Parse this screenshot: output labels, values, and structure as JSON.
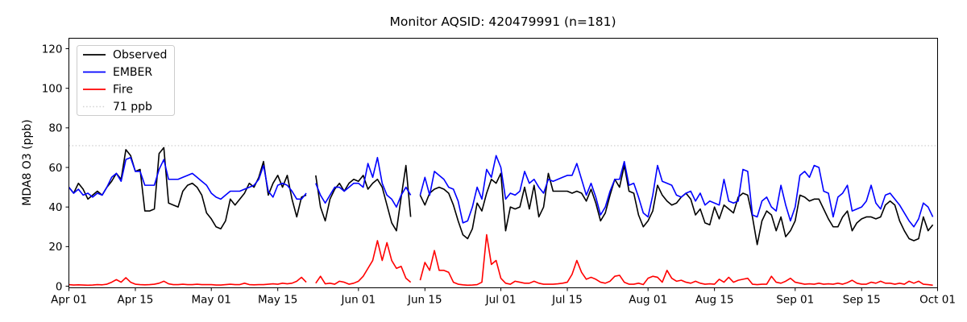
{
  "title": "Monitor AQSID: 420479991 (n=181)",
  "colors": {
    "observed": "#000000",
    "ember": "#0000ff",
    "fire": "#ff0000",
    "threshold": "#d3d3d3",
    "spine": "#000000",
    "legend_border": "#cccccc",
    "background": "#ffffff"
  },
  "chart_data": {
    "type": "line",
    "title": "Monitor AQSID: 420479991 (n=181)",
    "xlabel": "",
    "ylabel": "MDA8 O3 (ppb)",
    "ylim": [
      0,
      125
    ],
    "yticks": [
      0,
      20,
      40,
      60,
      80,
      100,
      120
    ],
    "x_range_days": 183,
    "xticks": [
      {
        "label": "Apr 01",
        "day": 0
      },
      {
        "label": "Apr 15",
        "day": 14
      },
      {
        "label": "May 01",
        "day": 30
      },
      {
        "label": "May 15",
        "day": 44
      },
      {
        "label": "Jun 01",
        "day": 61
      },
      {
        "label": "Jun 15",
        "day": 75
      },
      {
        "label": "Jul 01",
        "day": 91
      },
      {
        "label": "Jul 15",
        "day": 105
      },
      {
        "label": "Aug 01",
        "day": 122
      },
      {
        "label": "Aug 15",
        "day": 136
      },
      {
        "label": "Sep 01",
        "day": 153
      },
      {
        "label": "Sep 15",
        "day": 167
      },
      {
        "label": "Oct 01",
        "day": 183
      }
    ],
    "threshold": {
      "value": 71,
      "label": "71 ppb",
      "style": "dotted"
    },
    "legend": {
      "position": "upper-left",
      "entries": [
        "Observed",
        "EMBER",
        "Fire",
        "71 ppb"
      ]
    },
    "grid": false,
    "series": [
      {
        "name": "Observed",
        "color_key": "observed",
        "values": [
          50,
          47,
          52,
          49,
          44,
          46,
          48,
          46,
          50,
          53,
          57,
          54,
          69,
          66,
          58,
          59,
          38,
          38,
          39,
          67,
          70,
          42,
          41,
          40,
          48,
          51,
          52,
          50,
          46,
          37,
          34,
          30,
          29,
          33,
          44,
          41,
          44,
          47,
          52,
          50,
          55,
          63,
          46,
          52,
          56,
          50,
          56,
          44,
          35,
          45,
          46,
          null,
          56,
          40,
          33,
          44,
          49,
          52,
          48,
          52,
          54,
          53,
          56,
          49,
          52,
          54,
          50,
          41,
          32,
          28,
          45,
          61,
          35,
          null,
          46,
          41,
          47,
          49,
          50,
          49,
          47,
          41,
          33,
          26,
          24,
          29,
          42,
          38,
          47,
          54,
          52,
          57,
          28,
          40,
          39,
          40,
          50,
          39,
          51,
          35,
          40,
          57,
          48,
          48,
          48,
          48,
          47,
          48,
          47,
          43,
          49,
          42,
          33,
          37,
          46,
          54,
          50,
          61,
          48,
          47,
          36,
          30,
          33,
          38,
          51,
          46,
          43,
          41,
          42,
          45,
          47,
          44,
          36,
          39,
          32,
          31,
          40,
          34,
          41,
          39,
          37,
          45,
          47,
          46,
          35,
          21,
          33,
          38,
          36,
          28,
          35,
          25,
          28,
          33,
          46,
          45,
          43,
          44,
          44,
          39,
          34,
          30,
          30,
          35,
          38,
          28,
          32,
          34,
          35,
          35,
          34,
          35,
          41,
          43,
          41,
          33,
          28,
          24,
          23,
          24,
          35,
          28,
          31
        ]
      },
      {
        "name": "EMBER",
        "color_key": "ember",
        "values": [
          50,
          47,
          49,
          46,
          47,
          45,
          47,
          46,
          50,
          55,
          57,
          53,
          64,
          65,
          58,
          58,
          51,
          51,
          51,
          59,
          64,
          54,
          54,
          54,
          55,
          56,
          57,
          55,
          53,
          51,
          47,
          45,
          44,
          46,
          48,
          48,
          48,
          49,
          50,
          51,
          54,
          61,
          48,
          45,
          51,
          52,
          51,
          48,
          44,
          44,
          47,
          null,
          52,
          46,
          42,
          46,
          50,
          50,
          48,
          50,
          52,
          52,
          50,
          62,
          55,
          65,
          52,
          46,
          44,
          40,
          46,
          50,
          46,
          null,
          46,
          55,
          46,
          58,
          56,
          54,
          50,
          49,
          43,
          32,
          33,
          40,
          50,
          44,
          59,
          55,
          66,
          60,
          44,
          47,
          46,
          48,
          58,
          52,
          54,
          50,
          47,
          54,
          53,
          54,
          55,
          56,
          56,
          62,
          54,
          46,
          52,
          45,
          36,
          40,
          48,
          54,
          54,
          63,
          51,
          52,
          45,
          37,
          35,
          46,
          61,
          53,
          52,
          51,
          46,
          45,
          47,
          48,
          43,
          47,
          41,
          43,
          42,
          41,
          54,
          43,
          42,
          43,
          59,
          58,
          36,
          35,
          43,
          45,
          40,
          38,
          51,
          41,
          33,
          40,
          56,
          58,
          55,
          61,
          60,
          48,
          47,
          35,
          45,
          47,
          51,
          38,
          39,
          40,
          43,
          51,
          42,
          39,
          46,
          47,
          44,
          41,
          37,
          33,
          30,
          34,
          42,
          40,
          35
        ]
      },
      {
        "name": "Fire",
        "color_key": "fire",
        "values": [
          0.8,
          0.6,
          0.7,
          0.6,
          0.5,
          0.6,
          0.8,
          0.7,
          1,
          2,
          3.3,
          2,
          4.3,
          2,
          1,
          0.8,
          0.7,
          0.8,
          1,
          1.5,
          2.5,
          1.2,
          0.8,
          0.8,
          1,
          0.8,
          0.8,
          1,
          0.8,
          0.8,
          0.8,
          0.6,
          0.6,
          0.8,
          1,
          0.8,
          0.8,
          1.5,
          0.8,
          0.7,
          0.8,
          0.8,
          1,
          1.2,
          1,
          1.5,
          1.2,
          1.5,
          2.5,
          4.5,
          2,
          null,
          1.5,
          5,
          1.2,
          1.5,
          1,
          2.5,
          2,
          1,
          1.5,
          2.5,
          5,
          9,
          13,
          23,
          13,
          22,
          13,
          9,
          10,
          4,
          2,
          null,
          3,
          12,
          8,
          18,
          8,
          8,
          7,
          2,
          1,
          0.7,
          0.5,
          0.6,
          0.8,
          2,
          26,
          11,
          13,
          4,
          1.5,
          1,
          2.5,
          2,
          1.5,
          1.5,
          2.5,
          1.5,
          1,
          1,
          1,
          1.2,
          1.5,
          2,
          6,
          13,
          7,
          3.5,
          4.5,
          3.5,
          2,
          1.5,
          2.5,
          5,
          5.5,
          2,
          1,
          1,
          1.5,
          0.8,
          4,
          5,
          4.5,
          2,
          8,
          4,
          2.5,
          3,
          2,
          1.5,
          2.5,
          1.5,
          1,
          1.2,
          1,
          3.5,
          2,
          4.5,
          2,
          3,
          3.5,
          4,
          1,
          0.8,
          1,
          1,
          5,
          2,
          1.5,
          2.5,
          4,
          2,
          1.5,
          1,
          1.2,
          1,
          1.5,
          1,
          1.2,
          1,
          1.5,
          1,
          1.8,
          3,
          1.5,
          1,
          1,
          2,
          1.5,
          2.5,
          1.5,
          1.5,
          1,
          1.5,
          1,
          2.5,
          1.5,
          2.5,
          1,
          0.8,
          0.5
        ]
      }
    ]
  }
}
